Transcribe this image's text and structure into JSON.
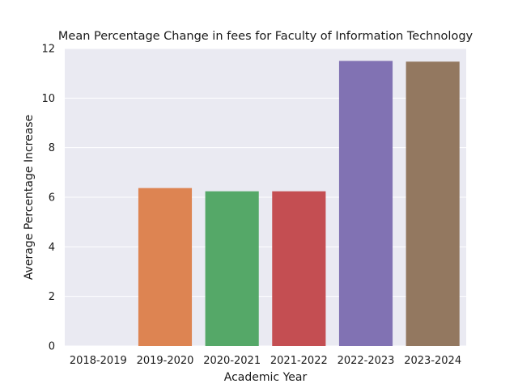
{
  "chart_data": {
    "type": "bar",
    "title": "Mean Percentage Change in fees for Faculty of Information Technology",
    "xlabel": "Academic Year",
    "ylabel": "Average Percentage Increase",
    "categories": [
      "2018-2019",
      "2019-2020",
      "2020-2021",
      "2021-2022",
      "2022-2023",
      "2023-2024"
    ],
    "values": [
      0,
      6.37,
      6.24,
      6.24,
      11.5,
      11.47
    ],
    "colors": [
      "#4c72b0",
      "#dd8452",
      "#55a868",
      "#c44e52",
      "#8172b3",
      "#937860"
    ],
    "ylim": [
      0,
      12
    ],
    "yticks": [
      0,
      2,
      4,
      6,
      8,
      10,
      12
    ],
    "grid": true,
    "background": "#eaeaf2"
  }
}
